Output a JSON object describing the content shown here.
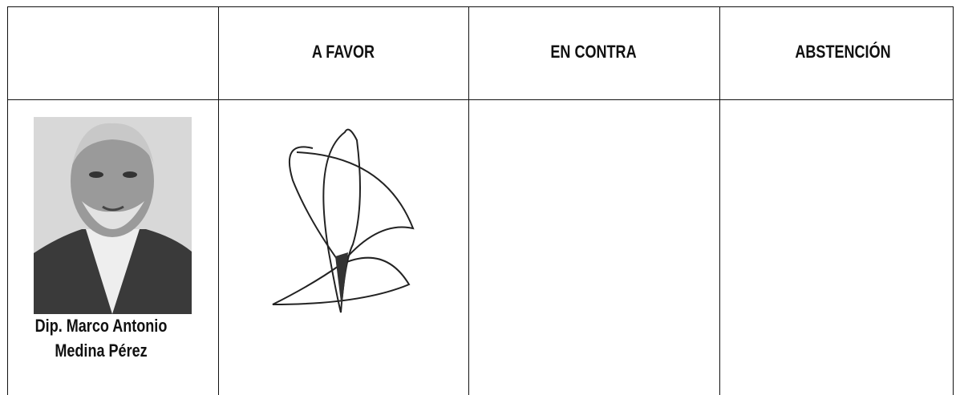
{
  "table": {
    "header": [
      "A FAVOR",
      "EN CONTRA",
      "ABSTENCIÓN"
    ],
    "rows": [
      {
        "name": [
          "Dip. Marco Antonio",
          "Medina Pérez"
        ]
      }
    ]
  }
}
